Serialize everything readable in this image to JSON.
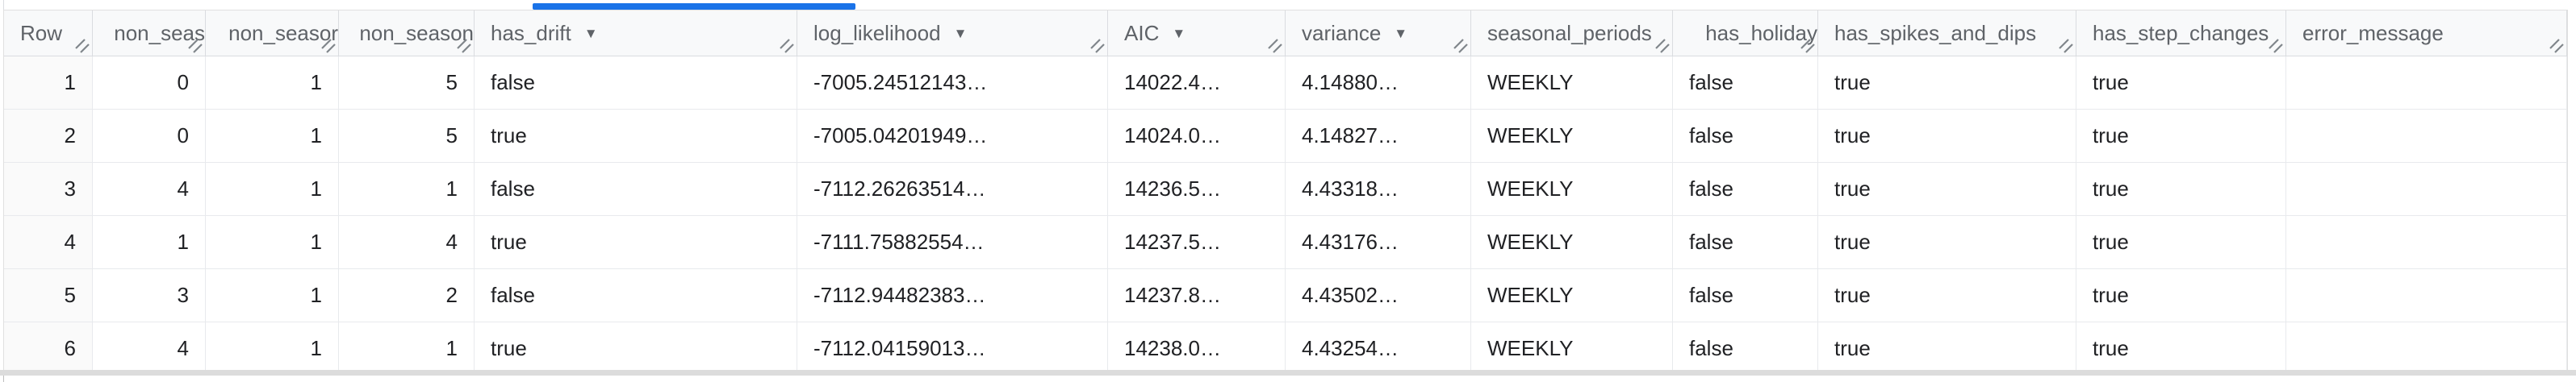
{
  "colors": {
    "accent": "#1a73e8",
    "header_bg": "#f8f9fa",
    "header_text": "#5f6368",
    "body_text": "#202124",
    "border": "#e0e0e0"
  },
  "icons": {
    "sort_caret": "▼",
    "resize_handle": "diagonal-double-lines"
  },
  "table": {
    "columns": [
      {
        "id": "row",
        "label": "Row",
        "sort_arrow": false
      },
      {
        "id": "non-seas",
        "label": "non_seas",
        "sort_arrow": false
      },
      {
        "id": "non-seasor",
        "label": "non_seasor",
        "sort_arrow": false
      },
      {
        "id": "non-season",
        "label": "non_season",
        "sort_arrow": false
      },
      {
        "id": "has-drift",
        "label": "has_drift",
        "sort_arrow": true
      },
      {
        "id": "log-likelihood",
        "label": "log_likelihood",
        "sort_arrow": true
      },
      {
        "id": "aic",
        "label": "AIC",
        "sort_arrow": true
      },
      {
        "id": "variance",
        "label": "variance",
        "sort_arrow": true
      },
      {
        "id": "seasonal-periods",
        "label": "seasonal_periods",
        "sort_arrow": false
      },
      {
        "id": "has-holiday",
        "label": "has_holiday",
        "sort_arrow": false
      },
      {
        "id": "has-spikes-and-dips",
        "label": "has_spikes_and_dips",
        "sort_arrow": false
      },
      {
        "id": "has-step-changes",
        "label": "has_step_changes",
        "sort_arrow": false
      },
      {
        "id": "error-message",
        "label": "error_message",
        "sort_arrow": false
      }
    ],
    "rows": [
      {
        "cells": [
          "1",
          "0",
          "1",
          "5",
          "false",
          "-7005.24512143…",
          "14022.4…",
          "4.14880…",
          "WEEKLY",
          "false",
          "true",
          "true",
          ""
        ]
      },
      {
        "cells": [
          "2",
          "0",
          "1",
          "5",
          "true",
          "-7005.04201949…",
          "14024.0…",
          "4.14827…",
          "WEEKLY",
          "false",
          "true",
          "true",
          ""
        ]
      },
      {
        "cells": [
          "3",
          "4",
          "1",
          "1",
          "false",
          "-7112.26263514…",
          "14236.5…",
          "4.43318…",
          "WEEKLY",
          "false",
          "true",
          "true",
          ""
        ]
      },
      {
        "cells": [
          "4",
          "1",
          "1",
          "4",
          "true",
          "-7111.75882554…",
          "14237.5…",
          "4.43176…",
          "WEEKLY",
          "false",
          "true",
          "true",
          ""
        ]
      },
      {
        "cells": [
          "5",
          "3",
          "1",
          "2",
          "false",
          "-7112.94482383…",
          "14237.8…",
          "4.43502…",
          "WEEKLY",
          "false",
          "true",
          "true",
          ""
        ]
      },
      {
        "cells": [
          "6",
          "4",
          "1",
          "1",
          "true",
          "-7112.04159013…",
          "14238.0…",
          "4.43254…",
          "WEEKLY",
          "false",
          "true",
          "true",
          ""
        ]
      }
    ]
  }
}
